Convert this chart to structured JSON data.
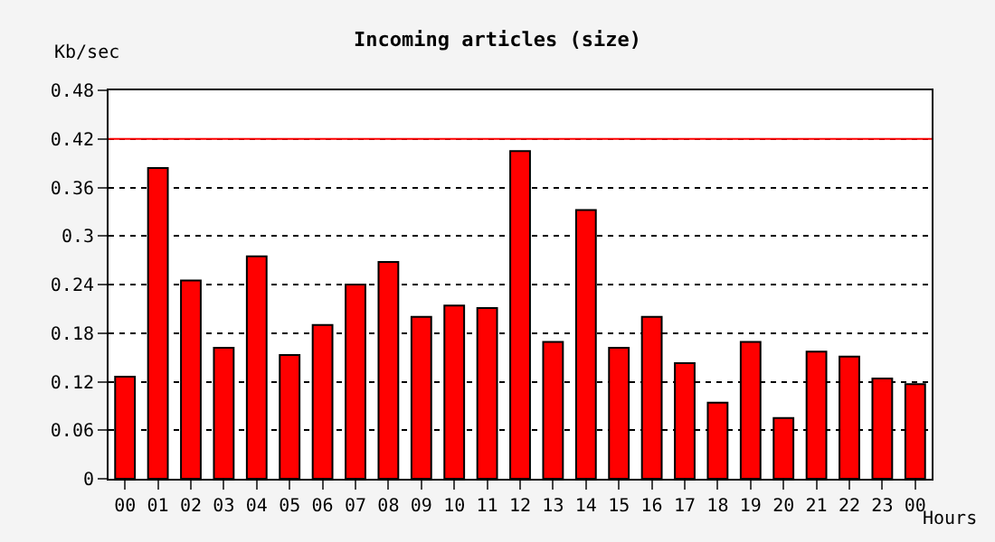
{
  "chart_data": {
    "type": "bar",
    "title": "Incoming articles (size)",
    "ylabel": "Kb/sec",
    "xlabel": "Hours",
    "categories": [
      "00",
      "01",
      "02",
      "03",
      "04",
      "05",
      "06",
      "07",
      "08",
      "09",
      "10",
      "11",
      "12",
      "13",
      "14",
      "15",
      "16",
      "17",
      "18",
      "19",
      "20",
      "21",
      "22",
      "23",
      "00"
    ],
    "series": [
      {
        "color": "#ff0000",
        "values": [
          0.126,
          0.384,
          0.245,
          0.162,
          0.275,
          0.153,
          0.19,
          0.24,
          0.268,
          0.2,
          0.214,
          0.211,
          0.405,
          0.169,
          0.332,
          0.162,
          0.2,
          0.143,
          0.094,
          0.169,
          0.075,
          0.157,
          0.151,
          0.124,
          0.117
        ]
      }
    ],
    "ylim": [
      0,
      0.48
    ],
    "yticks": [
      0,
      0.06,
      0.12,
      0.18,
      0.24,
      0.3,
      0.36,
      0.42,
      0.48
    ],
    "ref_lines": [
      {
        "axis": "y",
        "value": 0.42,
        "color": "#ff0000",
        "line_style": "solid"
      }
    ],
    "grid": "y",
    "legend": false
  }
}
